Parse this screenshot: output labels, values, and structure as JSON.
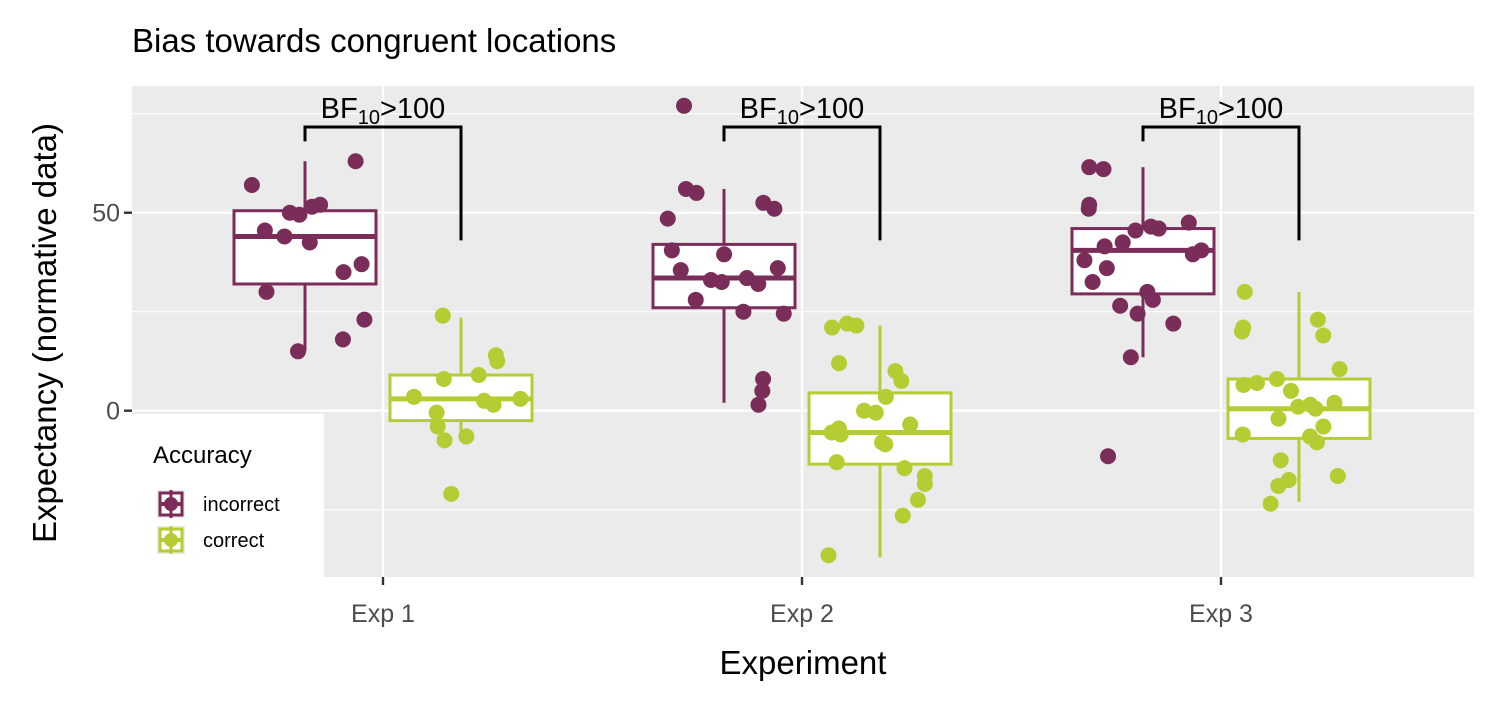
{
  "chart_data": {
    "type": "boxplot",
    "title": "Bias towards congruent locations",
    "xlabel": "Experiment",
    "ylabel": "Expectancy (normative data)",
    "categories": [
      "Exp 1",
      "Exp 2",
      "Exp 3"
    ],
    "ylim": [
      -42,
      82
    ],
    "yticks": [
      0,
      50
    ],
    "grid": true,
    "legend": {
      "title": "Accuracy",
      "position": "bottom-left-inside",
      "entries": [
        "incorrect",
        "correct"
      ]
    },
    "colors": {
      "incorrect": "#7b2d5a",
      "correct": "#b5cd33",
      "panel": "#ebebeb",
      "grid": "#ffffff"
    },
    "series": [
      {
        "name": "incorrect",
        "boxes": [
          {
            "category": "Exp 1",
            "q1": 32,
            "median": 44,
            "q3": 50.5,
            "whisker_low": 15,
            "whisker_high": 63
          },
          {
            "category": "Exp 2",
            "q1": 26,
            "median": 33.5,
            "q3": 42,
            "whisker_low": 2,
            "whisker_high": 56
          },
          {
            "category": "Exp 3",
            "q1": 29.5,
            "median": 40.5,
            "q3": 46,
            "whisker_low": 13.5,
            "whisker_high": 61.5
          }
        ],
        "points": [
          {
            "category": "Exp 1",
            "values": [
              63,
              57,
              51.5,
              50,
              49.5,
              52,
              45.5,
              44,
              42.5,
              37,
              35,
              30,
              23,
              18,
              15
            ]
          },
          {
            "category": "Exp 2",
            "values": [
              77,
              56,
              55,
              52.5,
              51,
              48.5,
              40.5,
              39.5,
              36,
              35.5,
              33.5,
              33,
              32.5,
              32,
              28,
              25,
              24.5,
              8,
              5,
              1.5
            ]
          },
          {
            "category": "Exp 3",
            "values": [
              61.5,
              61,
              52,
              51,
              47.5,
              46.5,
              46,
              45.5,
              42.5,
              41.5,
              40.5,
              39.5,
              38,
              36,
              32.5,
              30,
              28,
              26.5,
              24.5,
              22,
              13.5,
              -11.5
            ]
          }
        ]
      },
      {
        "name": "correct",
        "boxes": [
          {
            "category": "Exp 1",
            "q1": -2.5,
            "median": 3,
            "q3": 9,
            "whisker_low": -7,
            "whisker_high": 23.5
          },
          {
            "category": "Exp 2",
            "q1": -13.5,
            "median": -5.5,
            "q3": 4.5,
            "whisker_low": -37,
            "whisker_high": 21.5
          },
          {
            "category": "Exp 3",
            "q1": -7,
            "median": 0.5,
            "q3": 8,
            "whisker_low": -23,
            "whisker_high": 30
          }
        ],
        "points": [
          {
            "category": "Exp 1",
            "values": [
              24,
              14,
              12.5,
              9,
              8,
              3.5,
              3,
              2.5,
              1.5,
              -0.5,
              -4,
              -6.5,
              -7.5,
              -21
            ]
          },
          {
            "category": "Exp 2",
            "values": [
              22,
              21.5,
              21,
              12,
              10,
              7.5,
              3.5,
              0,
              -0.5,
              -3.5,
              -4.5,
              -5.5,
              -6,
              -8,
              -8.5,
              -13,
              -14.5,
              -16.5,
              -18.5,
              -22.5,
              -26.5,
              -36.5
            ]
          },
          {
            "category": "Exp 3",
            "values": [
              30,
              23,
              21,
              20,
              19,
              10.5,
              8,
              7,
              6.5,
              5,
              2,
              1.5,
              1,
              0.5,
              -2,
              -4,
              -6,
              -6.5,
              -8,
              -12.5,
              -16.5,
              -17.5,
              -19,
              -23.5
            ]
          }
        ]
      }
    ],
    "annotations": [
      {
        "category": "Exp 1",
        "text_main": "BF",
        "text_sub": "10",
        "text_rest": ">100"
      },
      {
        "category": "Exp 2",
        "text_main": "BF",
        "text_sub": "10",
        "text_rest": ">100"
      },
      {
        "category": "Exp 3",
        "text_main": "BF",
        "text_sub": "10",
        "text_rest": ">100"
      }
    ]
  }
}
